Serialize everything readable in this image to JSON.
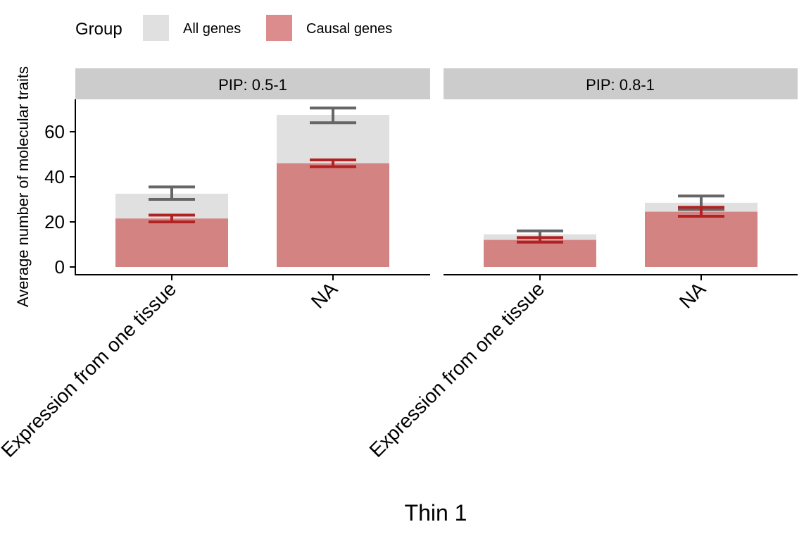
{
  "legend": {
    "title": "Group",
    "items": [
      {
        "label": "All genes",
        "color": "#e0e0e0"
      },
      {
        "label": "Causal genes",
        "color": "#dc8c8c"
      }
    ]
  },
  "chart_data": {
    "type": "bar",
    "xlabel": "Thin 1",
    "ylabel": "Average number of molecular traits",
    "ylim": [
      0,
      74
    ],
    "yticks": [
      0,
      20,
      40,
      60
    ],
    "categories": [
      "Expression from one tissue",
      "NA"
    ],
    "grid": false,
    "legend_position": "top-left",
    "overlay_color": "#cc7070",
    "colors": {
      "all_bar": "#e0e0e0",
      "causal_bar": "#d48383",
      "all_err": "#666666",
      "causal_err": "#b22222",
      "strip": "#cccccc"
    },
    "panels": [
      {
        "strip": "PIP: 0.5-1",
        "series": [
          {
            "name": "All genes",
            "values": [
              32.5,
              67.5
            ],
            "err_low": [
              30.0,
              64.0
            ],
            "err_high": [
              35.5,
              70.5
            ]
          },
          {
            "name": "Causal genes",
            "values": [
              21.5,
              46.0
            ],
            "err_low": [
              20.0,
              44.5
            ],
            "err_high": [
              23.0,
              47.5
            ]
          }
        ]
      },
      {
        "strip": "PIP: 0.8-1",
        "series": [
          {
            "name": "All genes",
            "values": [
              14.5,
              28.5
            ],
            "err_low": [
              13.0,
              25.5
            ],
            "err_high": [
              16.0,
              31.5
            ]
          },
          {
            "name": "Causal genes",
            "values": [
              12.0,
              24.5
            ],
            "err_low": [
              11.0,
              22.5
            ],
            "err_high": [
              13.0,
              26.5
            ]
          }
        ]
      }
    ]
  }
}
